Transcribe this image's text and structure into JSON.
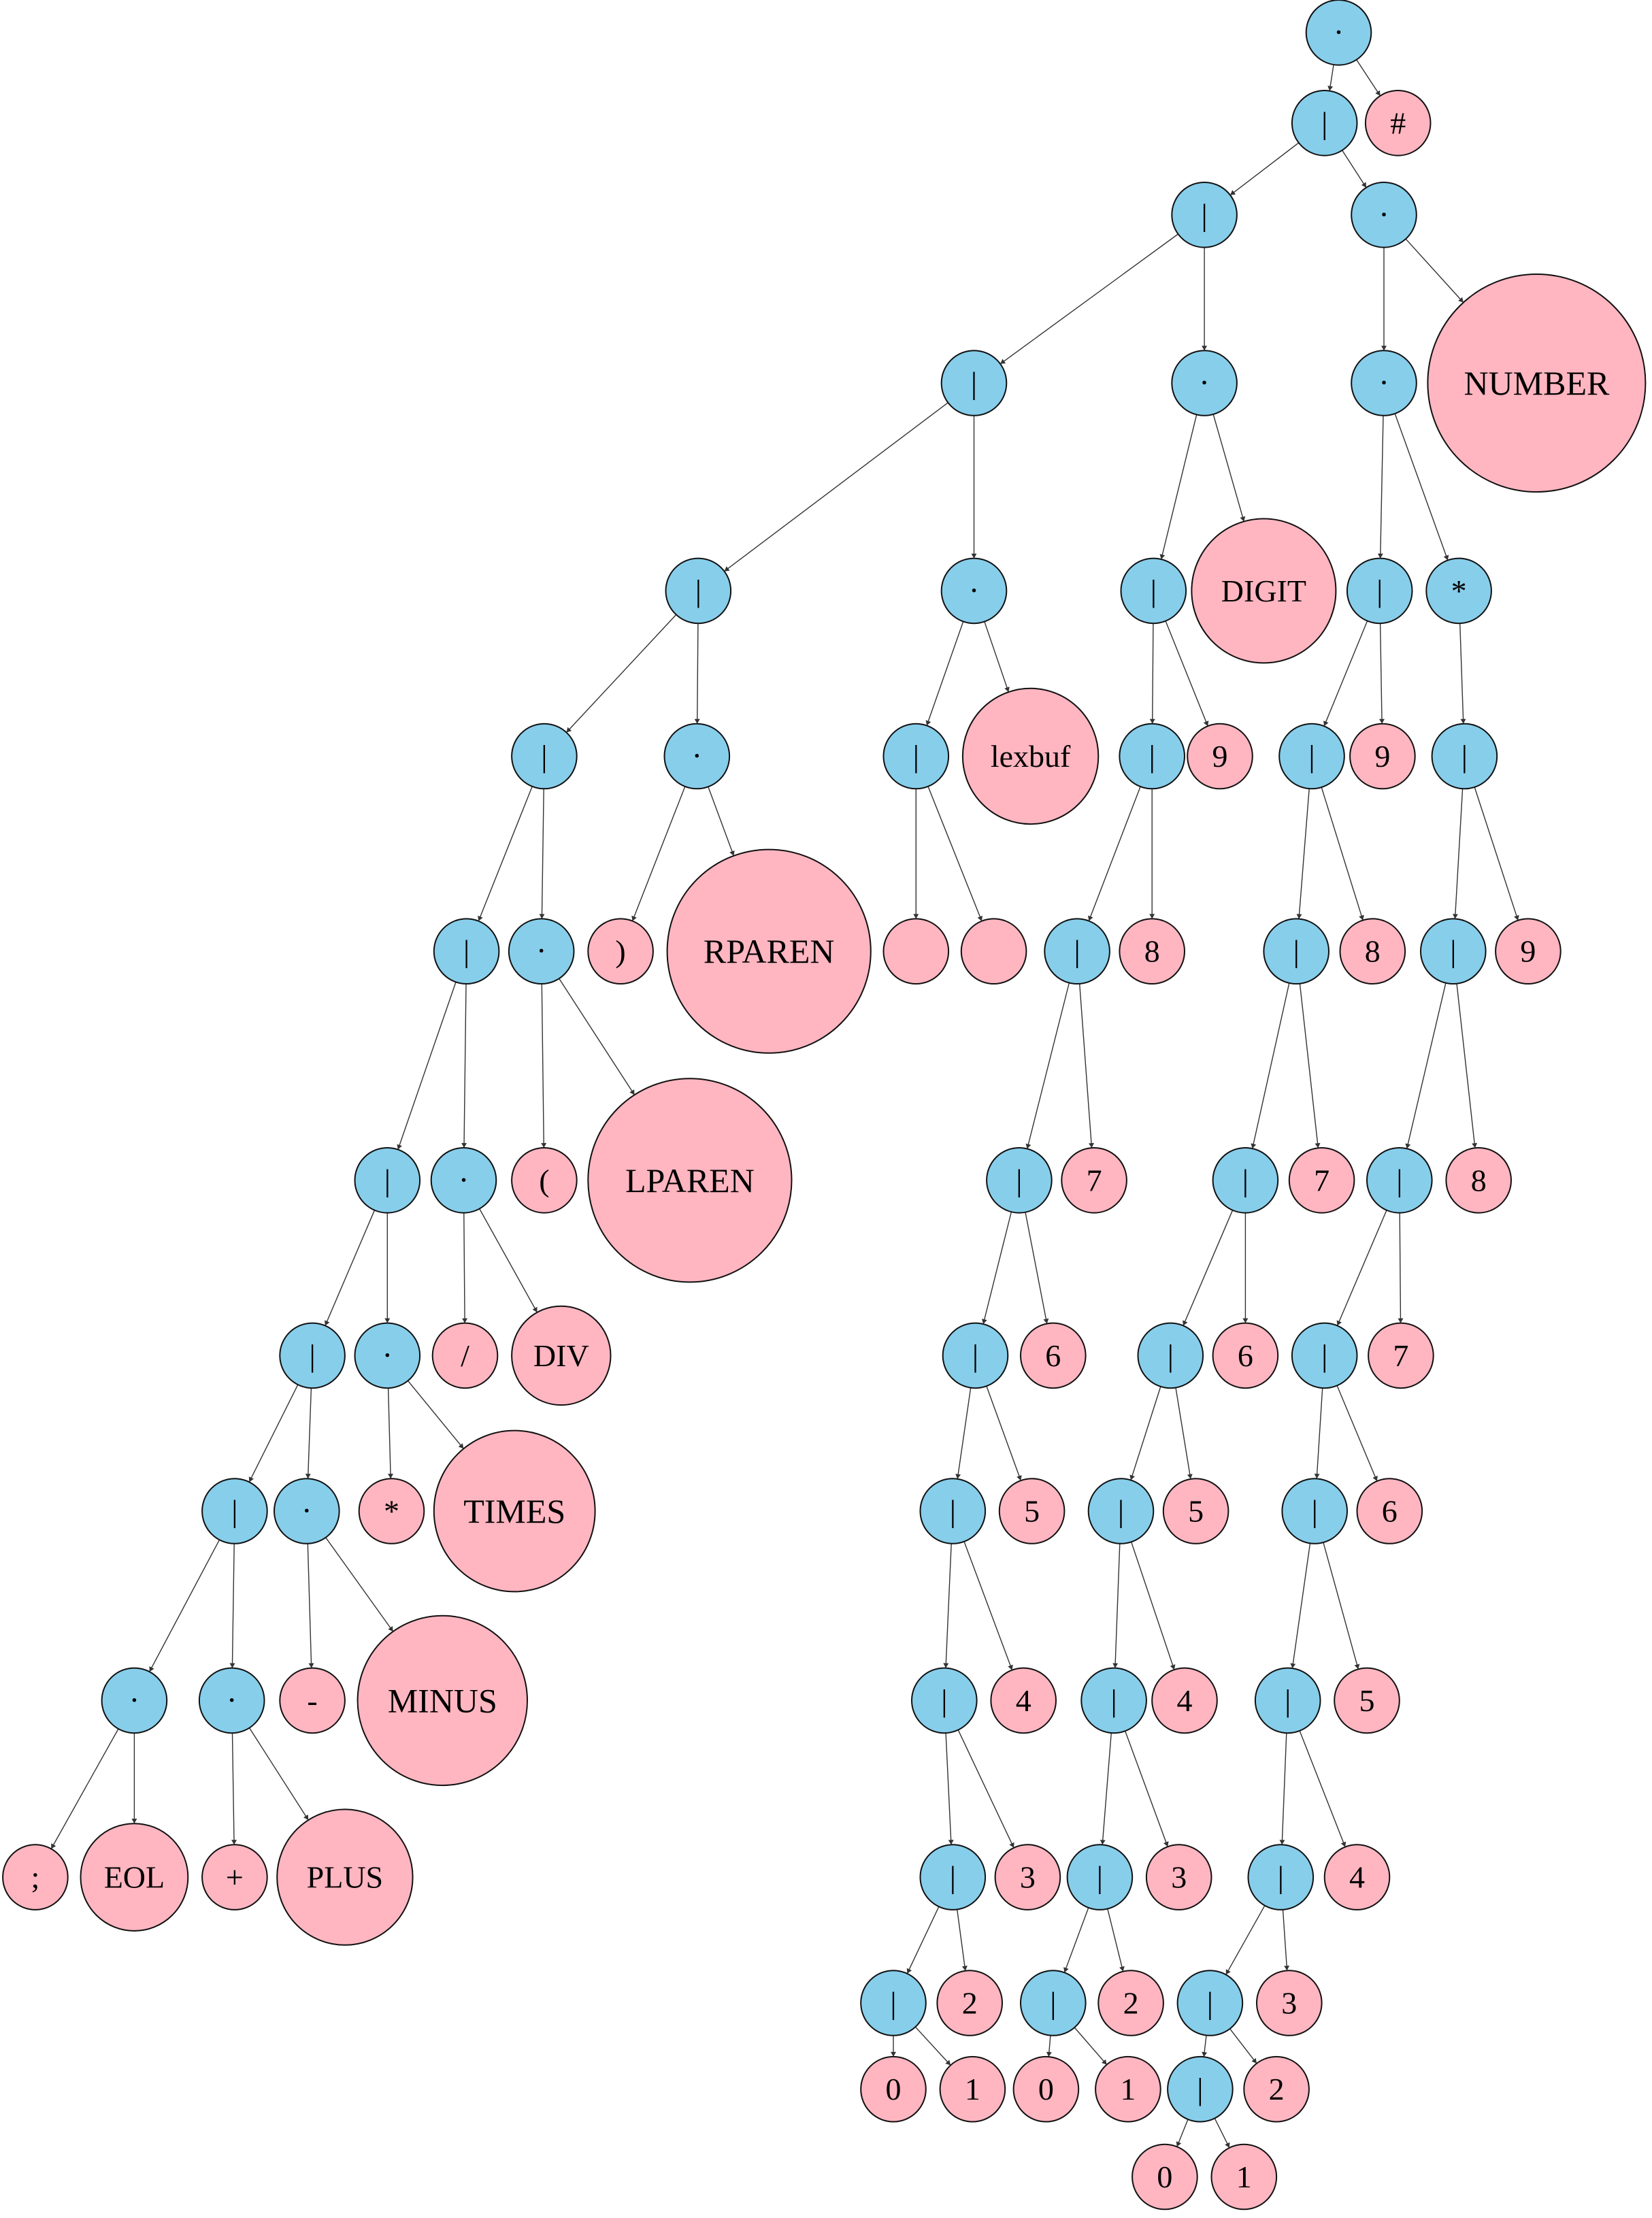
{
  "colors": {
    "operator": "#87CEEB",
    "leaf": "#FFB6C1"
  },
  "nodes": {
    "n1": {
      "label": "·",
      "kind": "operator"
    },
    "n2": {
      "label": "|",
      "kind": "operator"
    },
    "n3": {
      "label": "#",
      "kind": "leaf"
    },
    "n4": {
      "label": "|",
      "kind": "operator"
    },
    "n5": {
      "label": "·",
      "kind": "operator"
    },
    "n6": {
      "label": "|",
      "kind": "operator"
    },
    "n7": {
      "label": "·",
      "kind": "operator"
    },
    "n8": {
      "label": "·",
      "kind": "operator"
    },
    "n9": {
      "label": "NUMBER",
      "kind": "leaf"
    },
    "n10": {
      "label": "|",
      "kind": "operator"
    },
    "n11": {
      "label": "·",
      "kind": "operator"
    },
    "n12": {
      "label": "|",
      "kind": "operator"
    },
    "n13": {
      "label": "DIGIT",
      "kind": "leaf"
    },
    "n14": {
      "label": "|",
      "kind": "operator"
    },
    "n15": {
      "label": "*",
      "kind": "operator"
    },
    "n16": {
      "label": "|",
      "kind": "operator"
    },
    "n17": {
      "label": "·",
      "kind": "operator"
    },
    "n18": {
      "label": "|",
      "kind": "operator"
    },
    "n19": {
      "label": "lexbuf",
      "kind": "leaf"
    },
    "n20": {
      "label": "|",
      "kind": "operator"
    },
    "n21": {
      "label": "9",
      "kind": "leaf"
    },
    "n22": {
      "label": "|",
      "kind": "operator"
    },
    "n23": {
      "label": "9",
      "kind": "leaf"
    },
    "n24": {
      "label": "|",
      "kind": "operator"
    },
    "n25": {
      "label": "|",
      "kind": "operator"
    },
    "n26": {
      "label": "·",
      "kind": "operator"
    },
    "n27": {
      "label": ")",
      "kind": "leaf"
    },
    "n28": {
      "label": "RPAREN",
      "kind": "leaf"
    },
    "n29": {
      "label": "",
      "kind": "leaf"
    },
    "n30": {
      "label": "",
      "kind": "leaf"
    },
    "n31": {
      "label": "|",
      "kind": "operator"
    },
    "n32": {
      "label": "8",
      "kind": "leaf"
    },
    "n33": {
      "label": "|",
      "kind": "operator"
    },
    "n34": {
      "label": "8",
      "kind": "leaf"
    },
    "n35": {
      "label": "|",
      "kind": "operator"
    },
    "n36": {
      "label": "9",
      "kind": "leaf"
    },
    "n37": {
      "label": "|",
      "kind": "operator"
    },
    "n38": {
      "label": "·",
      "kind": "operator"
    },
    "n39": {
      "label": "(",
      "kind": "leaf"
    },
    "n40": {
      "label": "LPAREN",
      "kind": "leaf"
    },
    "n41": {
      "label": "|",
      "kind": "operator"
    },
    "n42": {
      "label": "7",
      "kind": "leaf"
    },
    "n43": {
      "label": "|",
      "kind": "operator"
    },
    "n44": {
      "label": "7",
      "kind": "leaf"
    },
    "n45": {
      "label": "|",
      "kind": "operator"
    },
    "n46": {
      "label": "8",
      "kind": "leaf"
    },
    "n47": {
      "label": "|",
      "kind": "operator"
    },
    "n48": {
      "label": "·",
      "kind": "operator"
    },
    "n49": {
      "label": "/",
      "kind": "leaf"
    },
    "n50": {
      "label": "DIV",
      "kind": "leaf"
    },
    "n51": {
      "label": "|",
      "kind": "operator"
    },
    "n52": {
      "label": "6",
      "kind": "leaf"
    },
    "n53": {
      "label": "|",
      "kind": "operator"
    },
    "n54": {
      "label": "6",
      "kind": "leaf"
    },
    "n55": {
      "label": "|",
      "kind": "operator"
    },
    "n56": {
      "label": "7",
      "kind": "leaf"
    },
    "n57": {
      "label": "|",
      "kind": "operator"
    },
    "n58": {
      "label": "·",
      "kind": "operator"
    },
    "n59": {
      "label": "*",
      "kind": "leaf"
    },
    "n60": {
      "label": "TIMES",
      "kind": "leaf"
    },
    "n61": {
      "label": "|",
      "kind": "operator"
    },
    "n62": {
      "label": "5",
      "kind": "leaf"
    },
    "n63": {
      "label": "|",
      "kind": "operator"
    },
    "n64": {
      "label": "5",
      "kind": "leaf"
    },
    "n65": {
      "label": "|",
      "kind": "operator"
    },
    "n66": {
      "label": "6",
      "kind": "leaf"
    },
    "n67": {
      "label": "·",
      "kind": "operator"
    },
    "n68": {
      "label": "·",
      "kind": "operator"
    },
    "n69": {
      "label": "-",
      "kind": "leaf"
    },
    "n70": {
      "label": "MINUS",
      "kind": "leaf"
    },
    "n71": {
      "label": "|",
      "kind": "operator"
    },
    "n72": {
      "label": "4",
      "kind": "leaf"
    },
    "n73": {
      "label": "|",
      "kind": "operator"
    },
    "n74": {
      "label": "4",
      "kind": "leaf"
    },
    "n75": {
      "label": "|",
      "kind": "operator"
    },
    "n76": {
      "label": "5",
      "kind": "leaf"
    },
    "n77": {
      "label": ";",
      "kind": "leaf"
    },
    "n78": {
      "label": "EOL",
      "kind": "leaf"
    },
    "n79": {
      "label": "+",
      "kind": "leaf"
    },
    "n80": {
      "label": "PLUS",
      "kind": "leaf"
    },
    "n81": {
      "label": "|",
      "kind": "operator"
    },
    "n82": {
      "label": "3",
      "kind": "leaf"
    },
    "n83": {
      "label": "|",
      "kind": "operator"
    },
    "n84": {
      "label": "3",
      "kind": "leaf"
    },
    "n85": {
      "label": "|",
      "kind": "operator"
    },
    "n86": {
      "label": "4",
      "kind": "leaf"
    },
    "n87": {
      "label": "|",
      "kind": "operator"
    },
    "n88": {
      "label": "2",
      "kind": "leaf"
    },
    "n89": {
      "label": "|",
      "kind": "operator"
    },
    "n90": {
      "label": "2",
      "kind": "leaf"
    },
    "n91": {
      "label": "|",
      "kind": "operator"
    },
    "n92": {
      "label": "3",
      "kind": "leaf"
    },
    "n93": {
      "label": "0",
      "kind": "leaf"
    },
    "n94": {
      "label": "1",
      "kind": "leaf"
    },
    "n95": {
      "label": "0",
      "kind": "leaf"
    },
    "n96": {
      "label": "1",
      "kind": "leaf"
    },
    "n97": {
      "label": "|",
      "kind": "operator"
    },
    "n98": {
      "label": "2",
      "kind": "leaf"
    },
    "n99": {
      "label": "0",
      "kind": "leaf"
    },
    "n100": {
      "label": "1",
      "kind": "leaf"
    }
  },
  "edges": [
    [
      "n1",
      "n2"
    ],
    [
      "n1",
      "n3"
    ],
    [
      "n2",
      "n4"
    ],
    [
      "n2",
      "n5"
    ],
    [
      "n4",
      "n6"
    ],
    [
      "n4",
      "n7"
    ],
    [
      "n5",
      "n8"
    ],
    [
      "n5",
      "n9"
    ],
    [
      "n6",
      "n10"
    ],
    [
      "n6",
      "n11"
    ],
    [
      "n7",
      "n12"
    ],
    [
      "n7",
      "n13"
    ],
    [
      "n8",
      "n14"
    ],
    [
      "n8",
      "n15"
    ],
    [
      "n10",
      "n16"
    ],
    [
      "n10",
      "n17"
    ],
    [
      "n11",
      "n18"
    ],
    [
      "n11",
      "n19"
    ],
    [
      "n12",
      "n20"
    ],
    [
      "n12",
      "n21"
    ],
    [
      "n14",
      "n22"
    ],
    [
      "n14",
      "n23"
    ],
    [
      "n15",
      "n24"
    ],
    [
      "n16",
      "n25"
    ],
    [
      "n16",
      "n26"
    ],
    [
      "n17",
      "n27"
    ],
    [
      "n17",
      "n28"
    ],
    [
      "n18",
      "n29"
    ],
    [
      "n18",
      "n30"
    ],
    [
      "n20",
      "n31"
    ],
    [
      "n20",
      "n32"
    ],
    [
      "n22",
      "n33"
    ],
    [
      "n22",
      "n34"
    ],
    [
      "n24",
      "n35"
    ],
    [
      "n24",
      "n36"
    ],
    [
      "n25",
      "n37"
    ],
    [
      "n25",
      "n38"
    ],
    [
      "n26",
      "n39"
    ],
    [
      "n26",
      "n40"
    ],
    [
      "n31",
      "n41"
    ],
    [
      "n31",
      "n42"
    ],
    [
      "n33",
      "n43"
    ],
    [
      "n33",
      "n44"
    ],
    [
      "n35",
      "n45"
    ],
    [
      "n35",
      "n46"
    ],
    [
      "n37",
      "n47"
    ],
    [
      "n37",
      "n48"
    ],
    [
      "n38",
      "n49"
    ],
    [
      "n38",
      "n50"
    ],
    [
      "n41",
      "n51"
    ],
    [
      "n41",
      "n52"
    ],
    [
      "n43",
      "n53"
    ],
    [
      "n43",
      "n54"
    ],
    [
      "n45",
      "n55"
    ],
    [
      "n45",
      "n56"
    ],
    [
      "n47",
      "n57"
    ],
    [
      "n47",
      "n58"
    ],
    [
      "n48",
      "n59"
    ],
    [
      "n48",
      "n60"
    ],
    [
      "n51",
      "n61"
    ],
    [
      "n51",
      "n62"
    ],
    [
      "n53",
      "n63"
    ],
    [
      "n53",
      "n64"
    ],
    [
      "n55",
      "n65"
    ],
    [
      "n55",
      "n66"
    ],
    [
      "n57",
      "n67"
    ],
    [
      "n57",
      "n68"
    ],
    [
      "n58",
      "n69"
    ],
    [
      "n58",
      "n70"
    ],
    [
      "n61",
      "n71"
    ],
    [
      "n61",
      "n72"
    ],
    [
      "n63",
      "n73"
    ],
    [
      "n63",
      "n74"
    ],
    [
      "n65",
      "n75"
    ],
    [
      "n65",
      "n76"
    ],
    [
      "n67",
      "n77"
    ],
    [
      "n67",
      "n78"
    ],
    [
      "n68",
      "n79"
    ],
    [
      "n68",
      "n80"
    ],
    [
      "n71",
      "n81"
    ],
    [
      "n71",
      "n82"
    ],
    [
      "n73",
      "n83"
    ],
    [
      "n73",
      "n84"
    ],
    [
      "n75",
      "n85"
    ],
    [
      "n75",
      "n86"
    ],
    [
      "n81",
      "n87"
    ],
    [
      "n81",
      "n88"
    ],
    [
      "n83",
      "n89"
    ],
    [
      "n83",
      "n90"
    ],
    [
      "n85",
      "n91"
    ],
    [
      "n85",
      "n92"
    ],
    [
      "n87",
      "n93"
    ],
    [
      "n87",
      "n94"
    ],
    [
      "n89",
      "n95"
    ],
    [
      "n89",
      "n96"
    ],
    [
      "n91",
      "n97"
    ],
    [
      "n91",
      "n98"
    ],
    [
      "n97",
      "n99"
    ],
    [
      "n97",
      "n100"
    ]
  ]
}
